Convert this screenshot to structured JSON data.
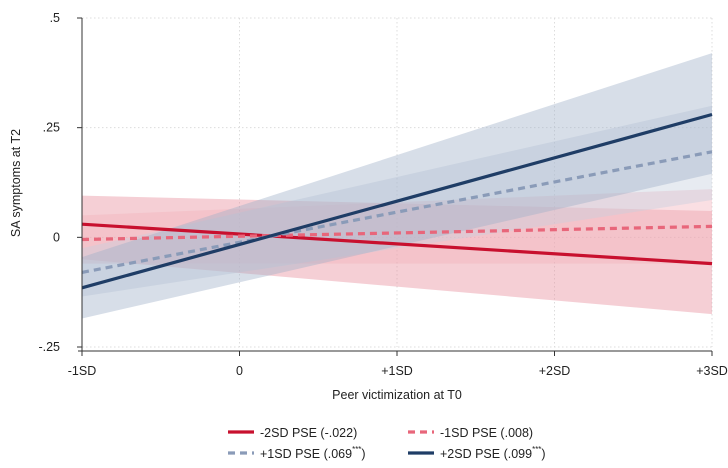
{
  "chart_data": {
    "type": "line",
    "xlabel": "Peer victimization at T0",
    "ylabel": "SA symptoms at T2",
    "x": [
      -1,
      0,
      1,
      2,
      3
    ],
    "x_tick_labels": [
      "-1SD",
      "0",
      "+1SD",
      "+2SD",
      "+3SD"
    ],
    "y_ticks": [
      -0.25,
      0,
      0.25,
      0.5
    ],
    "y_tick_labels": [
      "-.25",
      "0",
      ".25",
      ".5"
    ],
    "xlim": [
      -1,
      3
    ],
    "ylim": [
      -0.25,
      0.5
    ],
    "grid": true,
    "legend_position": "bottom",
    "series": [
      {
        "name": "-2SD PSE (-.022)",
        "label_text": "-2SD PSE (-.022)",
        "label_sup": "",
        "label_tail": "",
        "color": "#c8102e",
        "band_color": "#e88c9a",
        "dashed": false,
        "x": [
          -1,
          3
        ],
        "y": [
          0.03,
          -0.06
        ],
        "ci_lower": [
          -0.05,
          -0.175
        ],
        "ci_upper": [
          0.095,
          0.06
        ]
      },
      {
        "name": "-1SD PSE (.008)",
        "label_text": "-1SD PSE (.008)",
        "label_sup": "",
        "label_tail": "",
        "color": "#e8667a",
        "band_color": "#f2b3bd",
        "dashed": true,
        "x": [
          -1,
          3
        ],
        "y": [
          -0.005,
          0.025
        ],
        "ci_lower": [
          -0.06,
          -0.06
        ],
        "ci_upper": [
          0.05,
          0.11
        ]
      },
      {
        "name": "+1SD PSE (.069***)",
        "label_text": "+1SD PSE (.069",
        "label_sup": "***",
        "label_tail": ")",
        "color": "#8a9bb8",
        "band_color": "#c6cfdd",
        "dashed": true,
        "x": [
          -1,
          3
        ],
        "y": [
          -0.08,
          0.195
        ],
        "ci_lower": [
          -0.135,
          0.085
        ],
        "ci_upper": [
          -0.025,
          0.3
        ]
      },
      {
        "name": "+2SD PSE (.099***)",
        "label_text": "+2SD PSE (.099",
        "label_sup": "***",
        "label_tail": ")",
        "color": "#1f3d66",
        "band_color": "#9fb0c7",
        "dashed": false,
        "x": [
          -1,
          3
        ],
        "y": [
          -0.115,
          0.28
        ],
        "ci_lower": [
          -0.185,
          0.145
        ],
        "ci_upper": [
          -0.045,
          0.42
        ]
      }
    ]
  }
}
